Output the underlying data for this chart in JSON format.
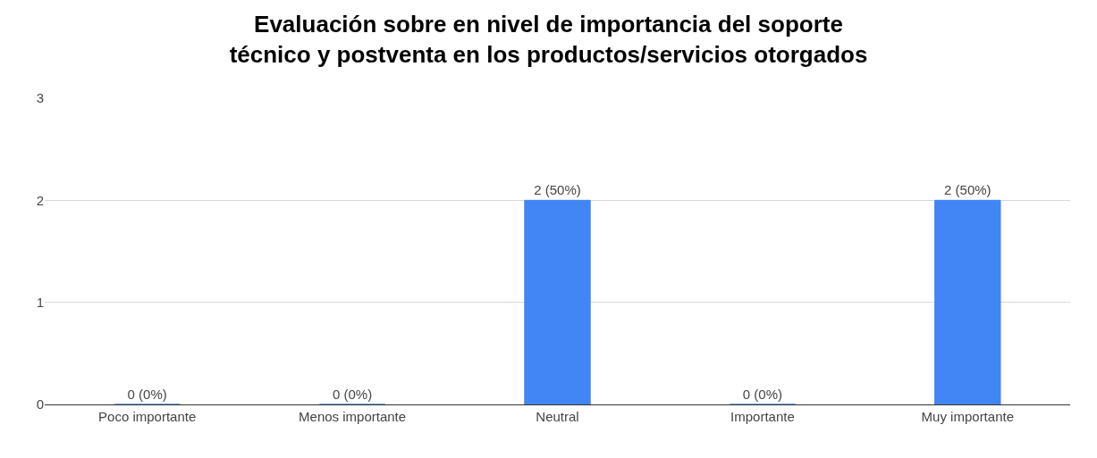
{
  "chart_data": {
    "type": "bar",
    "title": "Evaluación sobre en nivel de importancia del soporte\ntécnico y postventa en los productos/servicios otorgados",
    "categories": [
      "Poco importante",
      "Menos importante",
      "Neutral",
      "Importante",
      "Muy importante"
    ],
    "values": [
      0,
      0,
      2,
      0,
      2
    ],
    "value_labels": [
      "0 (0%)",
      "0 (0%)",
      "2 (50%)",
      "0 (0%)",
      "2 (50%)"
    ],
    "color": "#4285f4",
    "ylim": [
      0,
      3
    ],
    "yticks": [
      0,
      1,
      2,
      3
    ],
    "grid": "y",
    "legend": false
  }
}
